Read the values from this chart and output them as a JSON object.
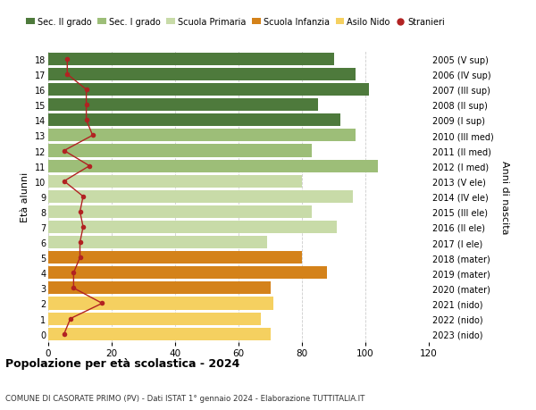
{
  "ages": [
    0,
    1,
    2,
    3,
    4,
    5,
    6,
    7,
    8,
    9,
    10,
    11,
    12,
    13,
    14,
    15,
    16,
    17,
    18
  ],
  "bar_values": [
    70,
    67,
    71,
    70,
    88,
    80,
    69,
    91,
    83,
    96,
    80,
    104,
    83,
    97,
    92,
    85,
    101,
    97,
    90
  ],
  "stranieri": [
    5,
    7,
    17,
    8,
    8,
    10,
    10,
    11,
    10,
    11,
    5,
    13,
    5,
    14,
    12,
    12,
    12,
    6,
    6
  ],
  "bar_colors": [
    "#f5d060",
    "#f5d060",
    "#f5d060",
    "#d4821a",
    "#d4821a",
    "#d4821a",
    "#c8dba8",
    "#c8dba8",
    "#c8dba8",
    "#c8dba8",
    "#c8dba8",
    "#9dbe78",
    "#9dbe78",
    "#9dbe78",
    "#4e7a3c",
    "#4e7a3c",
    "#4e7a3c",
    "#4e7a3c",
    "#4e7a3c"
  ],
  "right_labels": [
    "2023 (nido)",
    "2022 (nido)",
    "2021 (nido)",
    "2020 (mater)",
    "2019 (mater)",
    "2018 (mater)",
    "2017 (I ele)",
    "2016 (II ele)",
    "2015 (III ele)",
    "2014 (IV ele)",
    "2013 (V ele)",
    "2012 (I med)",
    "2011 (II med)",
    "2010 (III med)",
    "2009 (I sup)",
    "2008 (II sup)",
    "2007 (III sup)",
    "2006 (IV sup)",
    "2005 (V sup)"
  ],
  "legend_labels": [
    "Sec. II grado",
    "Sec. I grado",
    "Scuola Primaria",
    "Scuola Infanzia",
    "Asilo Nido",
    "Stranieri"
  ],
  "legend_colors": [
    "#4e7a3c",
    "#9dbe78",
    "#c8dba8",
    "#d4821a",
    "#f5d060",
    "#b22222"
  ],
  "ylabel_left": "Età alunni",
  "ylabel_right": "Anni di nascita",
  "title": "Popolazione per età scolastica - 2024",
  "subtitle": "COMUNE DI CASORATE PRIMO (PV) - Dati ISTAT 1° gennaio 2024 - Elaborazione TUTTITALIA.IT",
  "xlim": [
    0,
    120
  ],
  "xticks": [
    0,
    20,
    40,
    60,
    80,
    100,
    120
  ],
  "background_color": "#ffffff",
  "bar_height": 0.82,
  "stranieri_color": "#b22222",
  "grid_color": "#cccccc"
}
